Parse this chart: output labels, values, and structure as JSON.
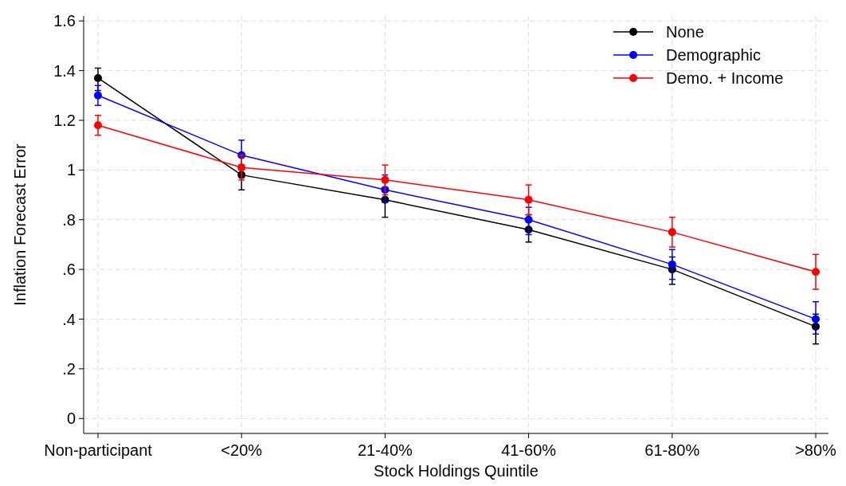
{
  "chart_data": {
    "type": "line",
    "xlabel": "Stock Holdings Quintile",
    "ylabel": "Inflation Forecast Error",
    "categories": [
      "Non-participant",
      "<20%",
      "21-40%",
      "41-60%",
      "61-80%",
      ">80%"
    ],
    "series": [
      {
        "name": "None",
        "color": "#000000",
        "values": [
          1.37,
          0.98,
          0.88,
          0.76,
          0.6,
          0.37
        ],
        "errors": [
          [
            1.32,
            1.41
          ],
          [
            0.92,
            1.02
          ],
          [
            0.81,
            0.93
          ],
          [
            0.71,
            0.82
          ],
          [
            0.54,
            0.65
          ],
          [
            0.3,
            0.42
          ]
        ]
      },
      {
        "name": "Demographic",
        "color": "#0000ff",
        "values": [
          1.3,
          1.06,
          0.92,
          0.8,
          0.62,
          0.4
        ],
        "errors": [
          [
            1.26,
            1.34
          ],
          [
            1.0,
            1.12
          ],
          [
            0.87,
            0.98
          ],
          [
            0.74,
            0.85
          ],
          [
            0.56,
            0.68
          ],
          [
            0.34,
            0.47
          ]
        ]
      },
      {
        "name": "Demo. + Income",
        "color": "#ff0000",
        "values": [
          1.18,
          1.01,
          0.96,
          0.88,
          0.75,
          0.59
        ],
        "errors": [
          [
            1.14,
            1.22
          ],
          [
            0.96,
            1.06
          ],
          [
            0.9,
            1.02
          ],
          [
            0.82,
            0.94
          ],
          [
            0.69,
            0.81
          ],
          [
            0.52,
            0.66
          ]
        ]
      }
    ],
    "ylim": [
      -0.06,
      1.62
    ],
    "yticks": [
      0,
      {
        "value": 0.2,
        "label": ".2"
      },
      {
        "value": 0.4,
        "label": ".4"
      },
      {
        "value": 0.6,
        "label": ".6"
      },
      {
        "value": 0.8,
        "label": ".8"
      },
      1,
      1.2,
      1.4,
      1.6
    ],
    "grid": true,
    "legend": "top right",
    "marker": "circle",
    "line_style": "solid"
  }
}
